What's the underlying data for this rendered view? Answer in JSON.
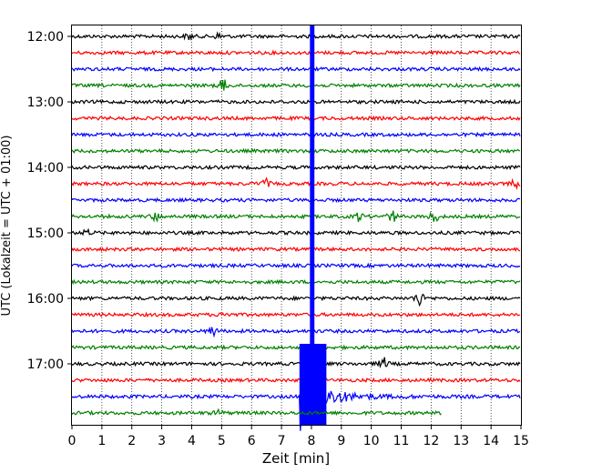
{
  "chart_data": {
    "type": "line",
    "title": "",
    "xlabel": "Zeit  [min]",
    "ylabel": "UTC (Lokalzeit = UTC + 01:00)",
    "xlim": [
      0,
      15
    ],
    "x_ticks": [
      "0",
      "1",
      "2",
      "3",
      "4",
      "5",
      "6",
      "7",
      "8",
      "9",
      "10",
      "11",
      "12",
      "13",
      "14",
      "15"
    ],
    "y_ticks": [
      "12:00",
      "13:00",
      "14:00",
      "15:00",
      "16:00",
      "17:00"
    ],
    "grid": "vertical dotted",
    "line_colors": [
      "#000000",
      "#ff0000",
      "#0000ff",
      "#008000"
    ],
    "traces": [
      {
        "hour": "12:00",
        "color": "#000000",
        "events": [
          {
            "t": 3.9,
            "amp": 5
          },
          {
            "t": 4.9,
            "amp": 5
          }
        ]
      },
      {
        "hour": "12:15",
        "color": "#ff0000",
        "events": []
      },
      {
        "hour": "12:30",
        "color": "#0000ff",
        "events": []
      },
      {
        "hour": "12:45",
        "color": "#008000",
        "events": [
          {
            "t": 5.05,
            "amp": 11
          }
        ]
      },
      {
        "hour": "13:00",
        "color": "#000000",
        "events": []
      },
      {
        "hour": "13:15",
        "color": "#ff0000",
        "events": []
      },
      {
        "hour": "13:30",
        "color": "#0000ff",
        "events": []
      },
      {
        "hour": "13:45",
        "color": "#008000",
        "events": []
      },
      {
        "hour": "14:00",
        "color": "#000000",
        "events": []
      },
      {
        "hour": "14:15",
        "color": "#ff0000",
        "events": [
          {
            "t": 6.45,
            "amp": 8
          },
          {
            "t": 14.8,
            "amp": 7
          }
        ]
      },
      {
        "hour": "14:30",
        "color": "#0000ff",
        "events": []
      },
      {
        "hour": "14:45",
        "color": "#008000",
        "events": [
          {
            "t": 2.8,
            "amp": 7
          },
          {
            "t": 9.6,
            "amp": 7
          },
          {
            "t": 10.7,
            "amp": 10
          },
          {
            "t": 12.1,
            "amp": 11
          }
        ]
      },
      {
        "hour": "15:00",
        "color": "#000000",
        "events": [
          {
            "t": 0.5,
            "amp": 5
          }
        ]
      },
      {
        "hour": "15:15",
        "color": "#ff0000",
        "events": []
      },
      {
        "hour": "15:30",
        "color": "#0000ff",
        "events": []
      },
      {
        "hour": "15:45",
        "color": "#008000",
        "events": []
      },
      {
        "hour": "16:00",
        "color": "#000000",
        "events": [
          {
            "t": 11.6,
            "amp": 13
          }
        ]
      },
      {
        "hour": "16:15",
        "color": "#ff0000",
        "events": [
          {
            "t": 5.1,
            "amp": 6
          }
        ]
      },
      {
        "hour": "16:30",
        "color": "#0000ff",
        "events": [
          {
            "t": 4.7,
            "amp": 8
          }
        ]
      },
      {
        "hour": "16:45",
        "color": "#008000",
        "events": []
      },
      {
        "hour": "17:00",
        "color": "#000000",
        "events": [
          {
            "t": 10.4,
            "amp": 10
          }
        ]
      },
      {
        "hour": "17:15",
        "color": "#ff0000",
        "events": []
      },
      {
        "hour": "17:30",
        "color": "#0000ff",
        "events": [
          {
            "t": 7.6,
            "amp": 40,
            "quake": true
          }
        ]
      },
      {
        "hour": "17:45",
        "color": "#008000",
        "events": [
          {
            "t": 4.9,
            "amp": 4
          }
        ],
        "end_t": 12.35
      }
    ]
  }
}
